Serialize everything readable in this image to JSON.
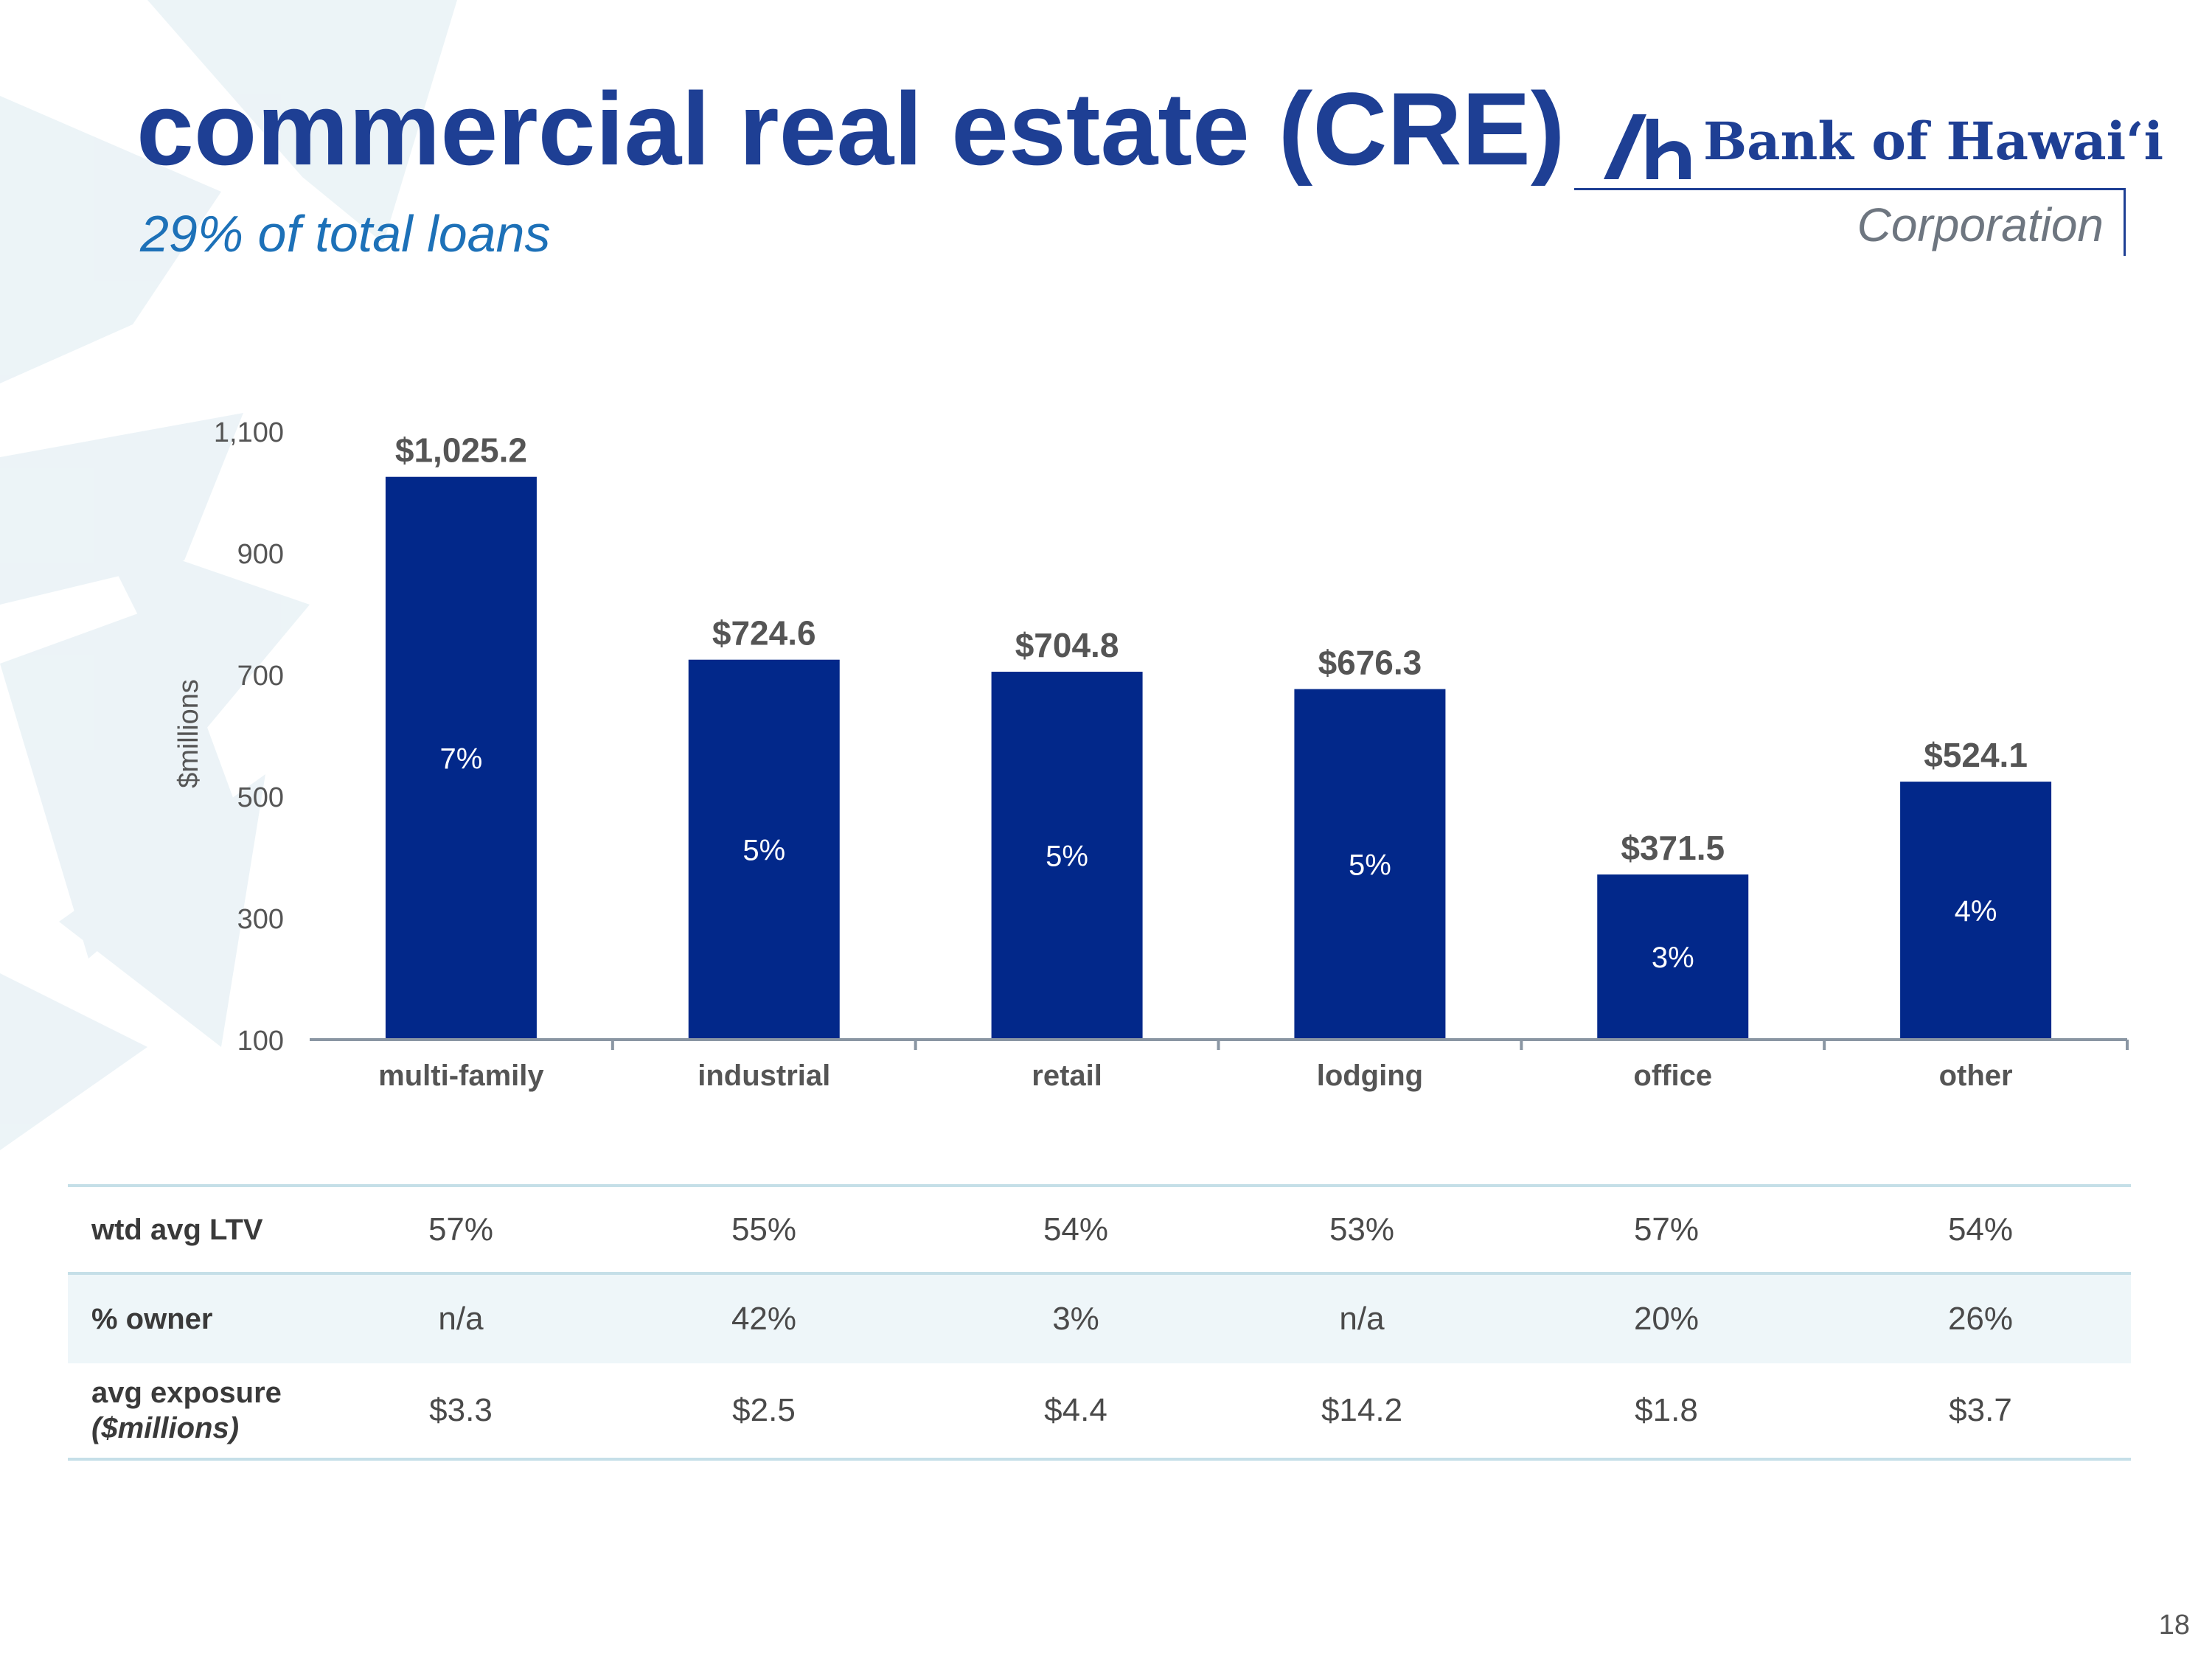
{
  "header": {
    "title": "commercial real estate (CRE)",
    "subtitle": "29% of total loans"
  },
  "logo": {
    "name": "Bank of Hawai‘i",
    "tagline": "Corporation"
  },
  "chart_data": {
    "type": "bar",
    "categories": [
      "multi-family",
      "industrial",
      "retail",
      "lodging",
      "office",
      "other"
    ],
    "values": [
      1025.2,
      724.6,
      704.8,
      676.3,
      371.5,
      524.1
    ],
    "value_labels": [
      "$1,025.2",
      "$724.6",
      "$704.8",
      "$676.3",
      "$371.5",
      "$524.1"
    ],
    "inner_labels": [
      "7%",
      "5%",
      "5%",
      "5%",
      "3%",
      "4%"
    ],
    "ylabel": "$millions",
    "yticks": [
      100,
      300,
      500,
      700,
      900,
      1100
    ],
    "ytick_labels": [
      "100",
      "300",
      "500",
      "700",
      "900",
      "1,100"
    ],
    "ylim": [
      100,
      1100
    ],
    "grid": false,
    "bar_color": "#02288a"
  },
  "table": {
    "rows": [
      {
        "label": "wtd avg LTV",
        "sublabel": "",
        "values": [
          "57%",
          "55%",
          "54%",
          "53%",
          "57%",
          "54%"
        ]
      },
      {
        "label": "% owner",
        "sublabel": "",
        "values": [
          "n/a",
          "42%",
          "3%",
          "n/a",
          "20%",
          "26%"
        ]
      },
      {
        "label": "avg exposure",
        "sublabel": "($millions)",
        "values": [
          "$3.3",
          "$2.5",
          "$4.4",
          "$14.2",
          "$1.8",
          "$3.7"
        ]
      }
    ]
  },
  "page_number": "18",
  "colors": {
    "title": "#1e3f94",
    "subtitle": "#1d71b8",
    "bar": "#02288a",
    "table_shade": "#eef6f9",
    "table_rule": "#c5dfe8"
  }
}
